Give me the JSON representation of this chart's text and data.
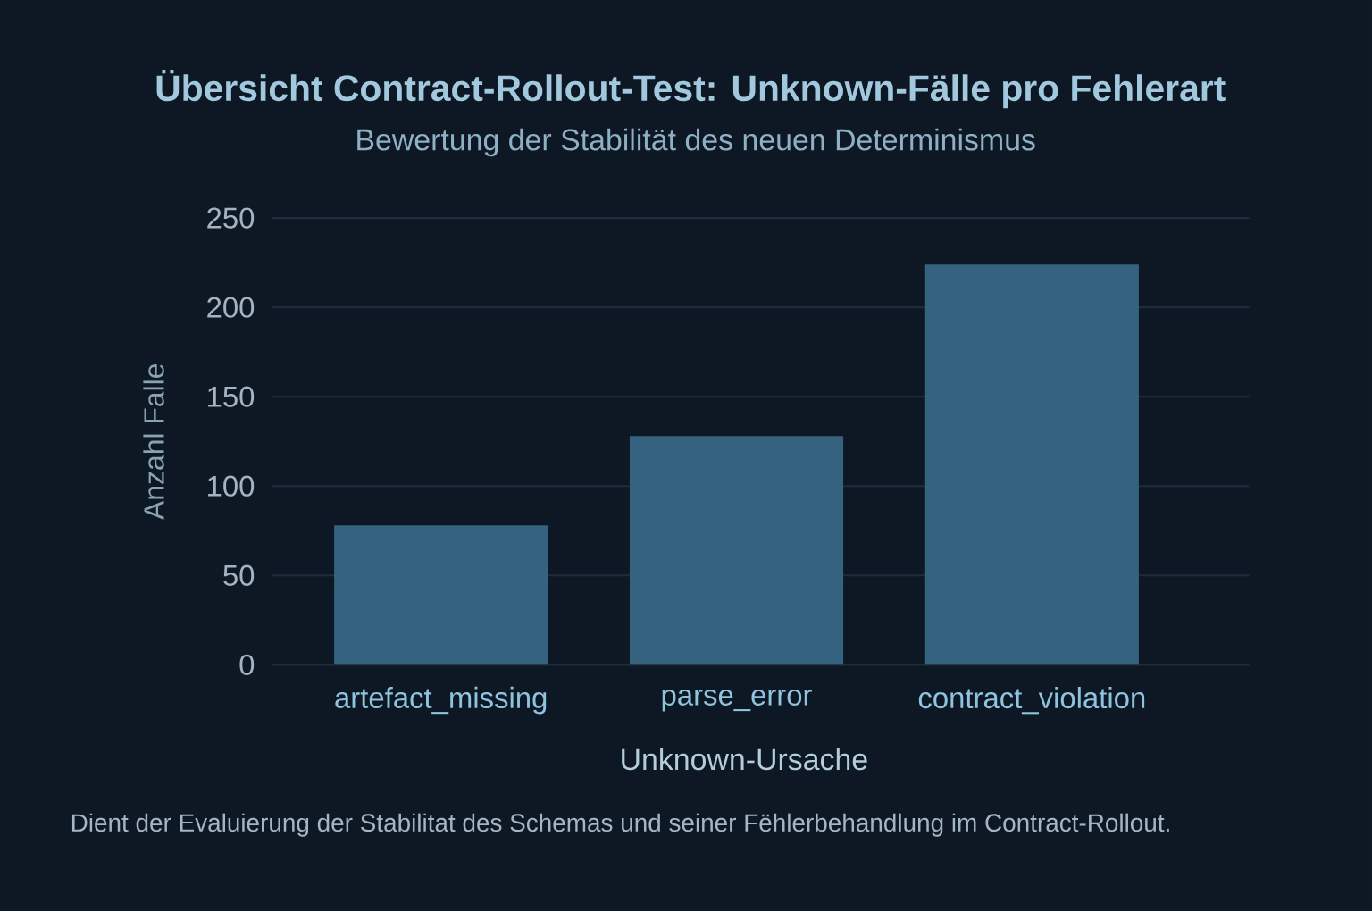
{
  "chart_data": {
    "type": "bar",
    "title": "Übersicht Contract-Rollout-Test: Unknown-Fälle pro Fehlerart",
    "subtitle": "Bewertung der Stabilität des neuen Determinismus",
    "xlabel": "Unknown-Ursache",
    "ylabel": "Anzahl Falle",
    "categories": [
      "artefact_missing",
      "parse_error",
      "contract_violation"
    ],
    "values": [
      78,
      128,
      224
    ],
    "color": "#35627f",
    "ylim": [
      0,
      250
    ],
    "yticks": [
      0,
      50,
      100,
      150,
      200,
      250
    ],
    "grid": "y",
    "annotations": [
      "Dient der Evaluierung der Stabilitat des Schemas und seiner Fëhlerbehandlung im Contract-Rollout."
    ]
  }
}
